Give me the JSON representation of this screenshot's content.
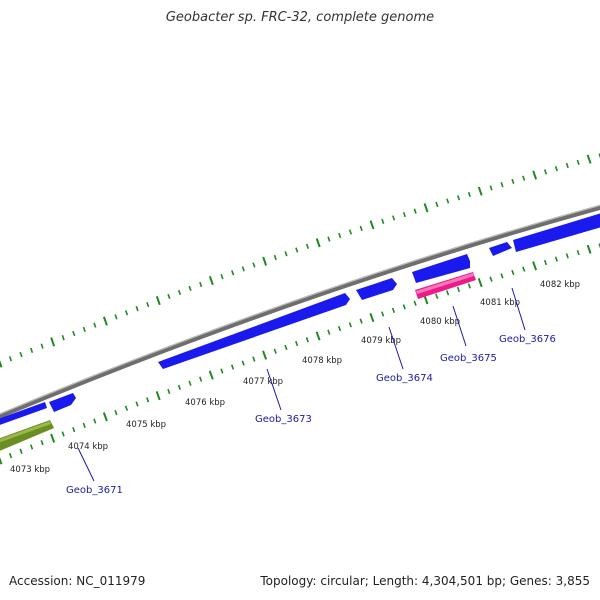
{
  "title": "Geobacter sp. FRC-32, complete genome",
  "footer": {
    "accession": "Accession: NC_011979",
    "topology": "Topology: circular; Length: 4,304,501 bp; Genes: 3,855"
  },
  "colors": {
    "backbone": "#8c8c8c",
    "tick": "#1e8a1e",
    "gene": "#1a1aee",
    "gene_highlight": "#ee1a8c",
    "gene_other": "#6b8e23",
    "leader": "#1a1aa8"
  },
  "kbp_labels": [
    "4073 kbp",
    "4074 kbp",
    "4075 kbp",
    "4076 kbp",
    "4077 kbp",
    "4078 kbp",
    "4079 kbp",
    "4080 kbp",
    "4081 kbp",
    "4082 kbp"
  ],
  "gene_labels": [
    "Geob_3671",
    "Geob_3673",
    "Geob_3674",
    "Geob_3675",
    "Geob_3676"
  ]
}
